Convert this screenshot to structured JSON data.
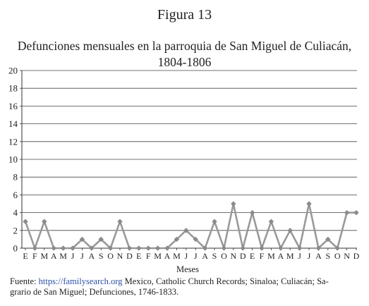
{
  "figure_label": "Figura 13",
  "chart_data": {
    "type": "line",
    "title_line1": "Defunciones mensuales en la parroquia de San Miguel de Culiacán,",
    "title_line2": "1804-1806",
    "xlabel": "Meses",
    "ylabel": "",
    "ylim": [
      0,
      20
    ],
    "yticks": [
      0,
      2,
      4,
      6,
      8,
      10,
      12,
      14,
      16,
      18,
      20
    ],
    "grid": true,
    "legend": "none",
    "categories": [
      "E",
      "F",
      "M",
      "A",
      "M",
      "J",
      "J",
      "A",
      "S",
      "O",
      "N",
      "D",
      "E",
      "F",
      "M",
      "A",
      "M",
      "J",
      "J",
      "A",
      "S",
      "O",
      "N",
      "D",
      "E",
      "F",
      "M",
      "A",
      "M",
      "J",
      "J",
      "A",
      "S",
      "O",
      "N",
      "D"
    ],
    "series": [
      {
        "values": [
          3,
          0,
          3,
          0,
          0,
          0,
          1,
          0,
          1,
          0,
          3,
          0,
          0,
          0,
          0,
          0,
          1,
          2,
          1,
          0,
          3,
          0,
          5,
          0,
          4,
          0,
          3,
          0,
          2,
          0,
          5,
          0,
          1,
          0,
          4,
          4
        ]
      }
    ],
    "colors": {
      "line": "#999999",
      "marker": "#8c8c8c",
      "grid": "#444444",
      "axis": "#333333"
    }
  },
  "source": {
    "prefix": "Fuente: ",
    "link": "https://familysearch.org",
    "line1_rest": " Mexico, Catholic Church Records; Sinaloa; Culiacán; Sa-",
    "line2": "grario de San Miguel; Defunciones, 1746-1833."
  }
}
